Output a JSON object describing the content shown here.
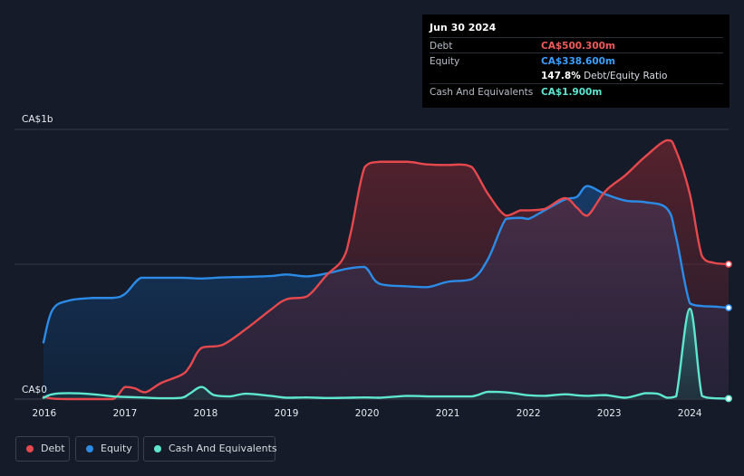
{
  "chart_data": {
    "type": "area",
    "ylabel_top": "CA$1b",
    "ylabel_bottom": "CA$0",
    "ylim": [
      0,
      1000
    ],
    "xlim": [
      2015.99,
      2024.48
    ],
    "x_ticks": [
      "2016",
      "2017",
      "2018",
      "2019",
      "2020",
      "2021",
      "2022",
      "2023",
      "2024"
    ],
    "grid": "horizontal",
    "legend_position": "bottom-left",
    "series": [
      {
        "name": "Debt",
        "color": "#e5484d",
        "points": [
          [
            2015.99,
            8
          ],
          [
            2016.1,
            2
          ],
          [
            2016.3,
            0
          ],
          [
            2016.6,
            0
          ],
          [
            2016.85,
            0
          ],
          [
            2017.0,
            45
          ],
          [
            2017.12,
            40
          ],
          [
            2017.25,
            25
          ],
          [
            2017.45,
            60
          ],
          [
            2017.7,
            90
          ],
          [
            2017.8,
            120
          ],
          [
            2017.95,
            190
          ],
          [
            2018.2,
            200
          ],
          [
            2018.5,
            260
          ],
          [
            2018.8,
            330
          ],
          [
            2019.0,
            370
          ],
          [
            2019.25,
            380
          ],
          [
            2019.5,
            460
          ],
          [
            2019.7,
            520
          ],
          [
            2019.8,
            620
          ],
          [
            2019.97,
            860
          ],
          [
            2020.15,
            880
          ],
          [
            2020.5,
            880
          ],
          [
            2020.75,
            870
          ],
          [
            2021.0,
            868
          ],
          [
            2021.15,
            870
          ],
          [
            2021.3,
            860
          ],
          [
            2021.5,
            760
          ],
          [
            2021.72,
            680
          ],
          [
            2021.9,
            700
          ],
          [
            2022.0,
            700
          ],
          [
            2022.2,
            705
          ],
          [
            2022.45,
            745
          ],
          [
            2022.6,
            710
          ],
          [
            2022.73,
            680
          ],
          [
            2022.95,
            770
          ],
          [
            2023.2,
            830
          ],
          [
            2023.45,
            900
          ],
          [
            2023.72,
            960
          ],
          [
            2023.83,
            920
          ],
          [
            2024.0,
            760
          ],
          [
            2024.15,
            530
          ],
          [
            2024.3,
            505
          ],
          [
            2024.48,
            500.3
          ]
        ]
      },
      {
        "name": "Equity",
        "color": "#2b8be6",
        "points": [
          [
            2015.99,
            210
          ],
          [
            2016.1,
            330
          ],
          [
            2016.3,
            365
          ],
          [
            2016.6,
            375
          ],
          [
            2016.85,
            375
          ],
          [
            2017.0,
            390
          ],
          [
            2017.2,
            450
          ],
          [
            2017.45,
            450
          ],
          [
            2017.7,
            450
          ],
          [
            2017.95,
            447
          ],
          [
            2018.2,
            451
          ],
          [
            2018.5,
            453
          ],
          [
            2018.8,
            456
          ],
          [
            2019.0,
            462
          ],
          [
            2019.25,
            455
          ],
          [
            2019.5,
            466
          ],
          [
            2019.75,
            483
          ],
          [
            2019.97,
            490
          ],
          [
            2020.15,
            428
          ],
          [
            2020.5,
            418
          ],
          [
            2020.75,
            415
          ],
          [
            2021.0,
            435
          ],
          [
            2021.3,
            445
          ],
          [
            2021.5,
            520
          ],
          [
            2021.72,
            668
          ],
          [
            2021.9,
            672
          ],
          [
            2022.0,
            668
          ],
          [
            2022.2,
            700
          ],
          [
            2022.45,
            740
          ],
          [
            2022.6,
            750
          ],
          [
            2022.73,
            790
          ],
          [
            2022.95,
            760
          ],
          [
            2023.2,
            736
          ],
          [
            2023.45,
            730
          ],
          [
            2023.72,
            705
          ],
          [
            2023.83,
            600
          ],
          [
            2024.0,
            355
          ],
          [
            2024.15,
            345
          ],
          [
            2024.3,
            343
          ],
          [
            2024.48,
            338.6
          ]
        ]
      },
      {
        "name": "Cash And Equivalents",
        "color": "#5ee6cf",
        "points": [
          [
            2015.99,
            5
          ],
          [
            2016.1,
            18
          ],
          [
            2016.3,
            22
          ],
          [
            2016.6,
            18
          ],
          [
            2016.85,
            10
          ],
          [
            2017.0,
            8
          ],
          [
            2017.2,
            6
          ],
          [
            2017.45,
            3
          ],
          [
            2017.7,
            5
          ],
          [
            2017.8,
            20
          ],
          [
            2017.95,
            45
          ],
          [
            2018.1,
            15
          ],
          [
            2018.3,
            10
          ],
          [
            2018.5,
            20
          ],
          [
            2018.8,
            12
          ],
          [
            2019.0,
            5
          ],
          [
            2019.25,
            6
          ],
          [
            2019.5,
            4
          ],
          [
            2019.75,
            5
          ],
          [
            2019.97,
            6
          ],
          [
            2020.15,
            5
          ],
          [
            2020.5,
            12
          ],
          [
            2020.75,
            10
          ],
          [
            2021.0,
            10
          ],
          [
            2021.3,
            10
          ],
          [
            2021.5,
            27
          ],
          [
            2021.72,
            25
          ],
          [
            2021.9,
            18
          ],
          [
            2022.0,
            14
          ],
          [
            2022.2,
            12
          ],
          [
            2022.45,
            18
          ],
          [
            2022.6,
            14
          ],
          [
            2022.73,
            12
          ],
          [
            2022.95,
            15
          ],
          [
            2023.2,
            5
          ],
          [
            2023.45,
            22
          ],
          [
            2023.6,
            20
          ],
          [
            2023.72,
            5
          ],
          [
            2023.83,
            10
          ],
          [
            2024.0,
            335
          ],
          [
            2024.15,
            12
          ],
          [
            2024.3,
            3
          ],
          [
            2024.48,
            1.9
          ]
        ]
      }
    ]
  },
  "tooltip": {
    "date": "Jun 30 2024",
    "rows": [
      {
        "label": "Debt",
        "value": "CA$500.300m",
        "color": "#f05a5a"
      },
      {
        "label": "Equity",
        "value": "CA$338.600m",
        "color": "#3aa0ff"
      },
      {
        "label": "",
        "ratio_value": "147.8%",
        "ratio_text": "Debt/Equity Ratio"
      },
      {
        "label": "Cash And Equivalents",
        "value": "CA$1.900m",
        "color": "#5ee6cf"
      }
    ]
  },
  "legend": {
    "items": [
      {
        "label": "Debt",
        "color": "#e5484d"
      },
      {
        "label": "Equity",
        "color": "#2b8be6"
      },
      {
        "label": "Cash And Equivalents",
        "color": "#5ee6cf"
      }
    ]
  }
}
